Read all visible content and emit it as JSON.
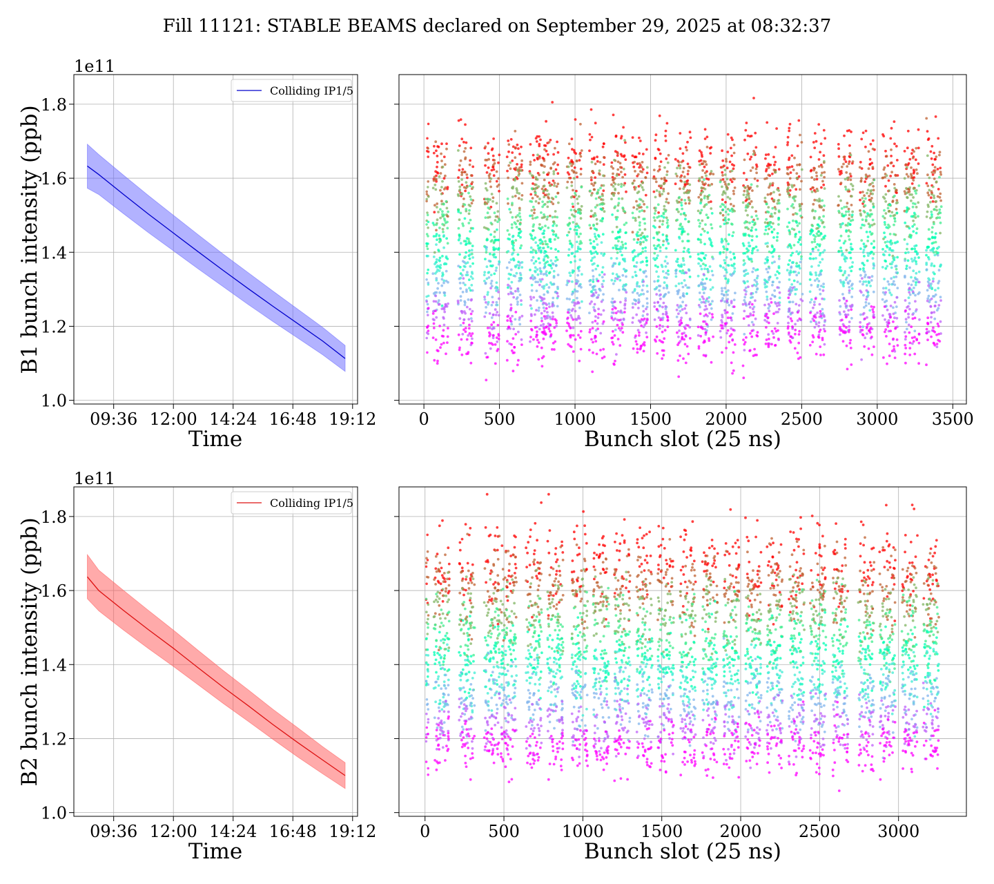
{
  "figure": {
    "title": "Fill 11121: STABLE BEAMS declared on September 29, 2025 at 08:32:37"
  },
  "colors": {
    "b1_line": "#0000cc",
    "b1_band": "#6666ff",
    "b2_line": "#dd1111",
    "b2_band": "#ff5555"
  },
  "chart_data": [
    {
      "type": "line",
      "panel": "B1 time evolution",
      "xlabel": "Time",
      "ylabel": "B1 bunch intensity (ppb)",
      "y_multiplier": "1e11",
      "x_tick_labels": [
        "09:36",
        "12:00",
        "14:24",
        "16:48",
        "19:12"
      ],
      "y_tick_labels": [
        "1.0",
        "1.2",
        "1.4",
        "1.6",
        "1.8"
      ],
      "xlim_hours": [
        8.0,
        19.4
      ],
      "ylim": [
        0.99,
        1.88
      ],
      "legend": {
        "position": "top-right",
        "entries": [
          "Colliding IP1/5"
        ]
      },
      "grid": true,
      "series": [
        {
          "name": "Colliding IP1/5",
          "x_hours": [
            8.54,
            9.0,
            10.0,
            11.0,
            12.0,
            13.0,
            14.0,
            15.0,
            16.0,
            17.0,
            18.0,
            18.9
          ],
          "mean": [
            1.633,
            1.61,
            1.556,
            1.503,
            1.452,
            1.401,
            1.351,
            1.302,
            1.254,
            1.207,
            1.16,
            1.113
          ],
          "band_upper": [
            1.692,
            1.664,
            1.608,
            1.553,
            1.5,
            1.447,
            1.395,
            1.345,
            1.295,
            1.246,
            1.197,
            1.148
          ],
          "band_lower": [
            1.573,
            1.556,
            1.504,
            1.453,
            1.404,
            1.355,
            1.307,
            1.259,
            1.213,
            1.168,
            1.123,
            1.078
          ]
        }
      ]
    },
    {
      "type": "scatter",
      "panel": "B1 bunch-by-bunch",
      "xlabel": "Bunch slot (25 ns)",
      "y_multiplier": "1e11",
      "x_tick_labels": [
        "0",
        "500",
        "1000",
        "1500",
        "2000",
        "2500",
        "3000",
        "3500"
      ],
      "xlim": [
        -165,
        3590
      ],
      "ylim": [
        0.99,
        1.88
      ],
      "grid": true,
      "colormap": "rainbow (purple early in fill, red late)",
      "trains": [
        [
          60,
          160
        ],
        [
          225,
          325
        ],
        [
          400,
          500
        ],
        [
          550,
          650
        ],
        [
          700,
          800
        ],
        [
          790,
          890
        ],
        [
          945,
          1045
        ],
        [
          1095,
          1195
        ],
        [
          1240,
          1340
        ],
        [
          1380,
          1480
        ],
        [
          1520,
          1620
        ],
        [
          1665,
          1765
        ],
        [
          1815,
          1915
        ],
        [
          1960,
          2060
        ],
        [
          2110,
          2210
        ],
        [
          2255,
          2355
        ],
        [
          2405,
          2505
        ],
        [
          2555,
          2655
        ],
        [
          2740,
          2840
        ],
        [
          2885,
          2985
        ],
        [
          3035,
          3135
        ],
        [
          3180,
          3280
        ],
        [
          3325,
          3425
        ]
      ],
      "pilot_slots": [
        20,
        28
      ],
      "y_range_start_of_fill": [
        1.55,
        1.75
      ],
      "y_range_end_of_fill": [
        1.1,
        1.25
      ]
    },
    {
      "type": "line",
      "panel": "B2 time evolution",
      "xlabel": "Time",
      "ylabel": "B2 bunch intensity (ppb)",
      "y_multiplier": "1e11",
      "x_tick_labels": [
        "09:36",
        "12:00",
        "14:24",
        "16:48",
        "19:12"
      ],
      "y_tick_labels": [
        "1.0",
        "1.2",
        "1.4",
        "1.6",
        "1.8"
      ],
      "xlim_hours": [
        8.0,
        19.4
      ],
      "ylim": [
        0.99,
        1.88
      ],
      "legend": {
        "position": "top-right",
        "entries": [
          "Colliding IP1/5"
        ]
      },
      "grid": true,
      "series": [
        {
          "name": "Colliding IP1/5",
          "x_hours": [
            8.54,
            9.0,
            10.0,
            11.0,
            12.0,
            13.0,
            14.0,
            15.0,
            16.0,
            17.0,
            18.0,
            18.9
          ],
          "mean": [
            1.637,
            1.6,
            1.546,
            1.494,
            1.444,
            1.391,
            1.339,
            1.289,
            1.238,
            1.189,
            1.142,
            1.1
          ],
          "band_upper": [
            1.697,
            1.655,
            1.6,
            1.546,
            1.493,
            1.438,
            1.384,
            1.332,
            1.279,
            1.229,
            1.178,
            1.135
          ],
          "band_lower": [
            1.578,
            1.545,
            1.493,
            1.443,
            1.395,
            1.345,
            1.295,
            1.247,
            1.198,
            1.15,
            1.105,
            1.065
          ]
        }
      ]
    },
    {
      "type": "scatter",
      "panel": "B2 bunch-by-bunch",
      "xlabel": "Bunch slot (25 ns)",
      "y_multiplier": "1e11",
      "x_tick_labels": [
        "0",
        "500",
        "1000",
        "1500",
        "2000",
        "2500",
        "3000"
      ],
      "xlim": [
        -165,
        3430
      ],
      "ylim": [
        0.99,
        1.88
      ],
      "grid": true,
      "colormap": "rainbow (purple early in fill, red late)",
      "trains": [
        [
          55,
          155
        ],
        [
          215,
          315
        ],
        [
          375,
          475
        ],
        [
          480,
          580
        ],
        [
          640,
          740
        ],
        [
          775,
          875
        ],
        [
          930,
          1030
        ],
        [
          1065,
          1165
        ],
        [
          1200,
          1300
        ],
        [
          1340,
          1440
        ],
        [
          1475,
          1575
        ],
        [
          1615,
          1715
        ],
        [
          1755,
          1855
        ],
        [
          1890,
          1990
        ],
        [
          2030,
          2130
        ],
        [
          2165,
          2265
        ],
        [
          2305,
          2405
        ],
        [
          2440,
          2540
        ],
        [
          2580,
          2680
        ],
        [
          2745,
          2845
        ],
        [
          2880,
          2980
        ],
        [
          3020,
          3120
        ],
        [
          3155,
          3255
        ]
      ],
      "pilot_slots": [
        10,
        18
      ],
      "y_range_start_of_fill": [
        1.55,
        1.78
      ],
      "y_range_end_of_fill": [
        1.1,
        1.25
      ]
    }
  ]
}
